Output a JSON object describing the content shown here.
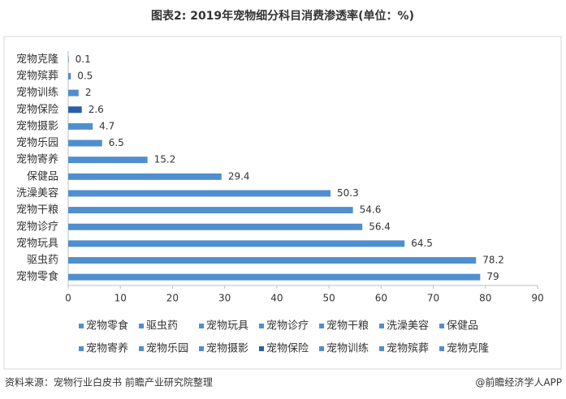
{
  "chart_data": {
    "type": "bar",
    "orientation": "horizontal",
    "title": "图表2: 2019年宠物细分科目消费渗透率(单位：%)",
    "categories": [
      "宠物零食",
      "驱虫药",
      "宠物玩具",
      "宠物诊疗",
      "宠物干粮",
      "洗澡美容",
      "保健品",
      "宠物寄养",
      "宠物乐园",
      "宠物摄影",
      "宠物保险",
      "宠物训练",
      "宠物殡葬",
      "宠物克隆"
    ],
    "values": [
      79,
      78.2,
      64.5,
      56.4,
      54.6,
      50.3,
      29.4,
      15.2,
      6.5,
      4.7,
      2.6,
      2,
      0.5,
      0.1
    ],
    "colors": [
      "#4f8fcf",
      "#4f8fcf",
      "#4f8fcf",
      "#4f8fcf",
      "#4f8fcf",
      "#4f8fcf",
      "#4f8fcf",
      "#4f8fcf",
      "#4f8fcf",
      "#4f8fcf",
      "#2c5ea8",
      "#4f8fcf",
      "#4f8fcf",
      "#4f8fcf"
    ],
    "xlim": [
      0,
      90
    ],
    "xticks": [
      0,
      10,
      20,
      30,
      40,
      50,
      60,
      70,
      80,
      90
    ],
    "legend": "bottom",
    "source": "资料来源：宠物行业白皮书 前瞻产业研究院整理",
    "credit": "@前瞻经济学人APP"
  }
}
